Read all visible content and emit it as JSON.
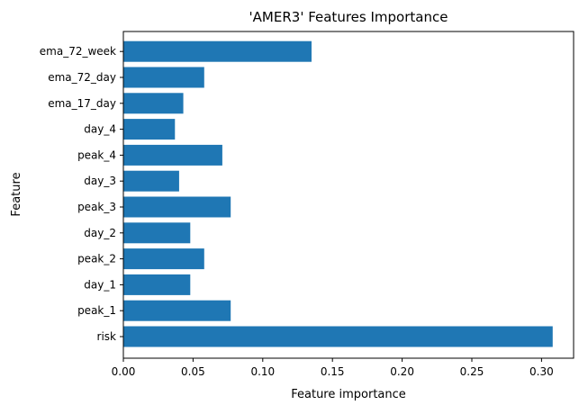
{
  "chart_data": {
    "type": "bar",
    "orientation": "horizontal",
    "title": "'AMER3' Features Importance",
    "xlabel": "Feature importance",
    "ylabel": "Feature",
    "categories": [
      "risk",
      "peak_1",
      "day_1",
      "peak_2",
      "day_2",
      "peak_3",
      "day_3",
      "peak_4",
      "day_4",
      "ema_17_day",
      "ema_72_day",
      "ema_72_week"
    ],
    "values": [
      0.308,
      0.077,
      0.048,
      0.058,
      0.048,
      0.077,
      0.04,
      0.071,
      0.037,
      0.043,
      0.058,
      0.135
    ],
    "xlim": [
      0,
      0.323
    ],
    "xticks": [
      0.0,
      0.05,
      0.1,
      0.15,
      0.2,
      0.25,
      0.3
    ],
    "xtick_labels": [
      "0.00",
      "0.05",
      "0.10",
      "0.15",
      "0.20",
      "0.25",
      "0.30"
    ],
    "grid": false,
    "bar_color": "#1f77b4"
  }
}
